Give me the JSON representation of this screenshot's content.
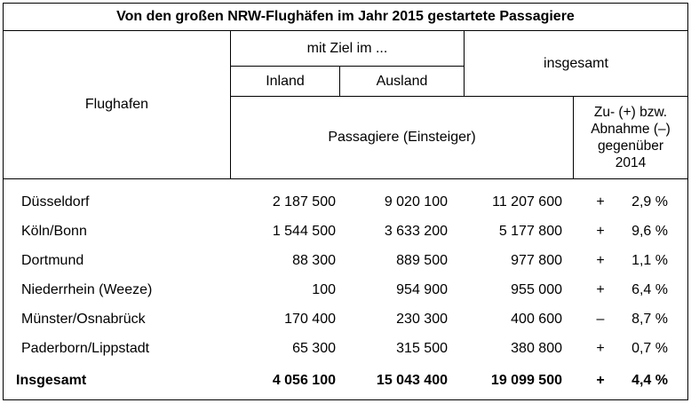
{
  "table": {
    "title": "Von den großen NRW-Flughäfen im Jahr 2015 gestartete Passagiere",
    "header": {
      "flughafen": "Flughafen",
      "mit_ziel": "mit Ziel im ...",
      "inland": "Inland",
      "ausland": "Ausland",
      "insgesamt": "insgesamt",
      "passagiere": "Passagiere (Einsteiger)",
      "change_line1": "Zu- (+) bzw.",
      "change_line2": "Abnahme (–)",
      "change_line3": "gegenüber",
      "change_line4": "2014"
    },
    "rows": [
      {
        "name": "Düsseldorf",
        "inland": "2 187 500",
        "ausland": "9 020 100",
        "total": "11 207 600",
        "sign": "+",
        "pct": "2,9 %"
      },
      {
        "name": "Köln/Bonn",
        "inland": "1 544 500",
        "ausland": "3 633 200",
        "total": "5 177 800",
        "sign": "+",
        "pct": "9,6 %"
      },
      {
        "name": "Dortmund",
        "inland": "88 300",
        "ausland": "889 500",
        "total": "977 800",
        "sign": "+",
        "pct": "1,1 %"
      },
      {
        "name": "Niederrhein (Weeze)",
        "inland": "100",
        "ausland": "954 900",
        "total": "955 000",
        "sign": "+",
        "pct": "6,4 %"
      },
      {
        "name": "Münster/Osnabrück",
        "inland": "170 400",
        "ausland": "230 300",
        "total": "400 600",
        "sign": "–",
        "pct": "8,7 %"
      },
      {
        "name": "Paderborn/Lippstadt",
        "inland": "65 300",
        "ausland": "315 500",
        "total": "380 800",
        "sign": "+",
        "pct": "0,7 %"
      }
    ],
    "total_row": {
      "name": "Insgesamt",
      "inland": "4 056 100",
      "ausland": "15 043 400",
      "total": "19 099 500",
      "sign": "+",
      "pct": "4,4 %"
    }
  }
}
